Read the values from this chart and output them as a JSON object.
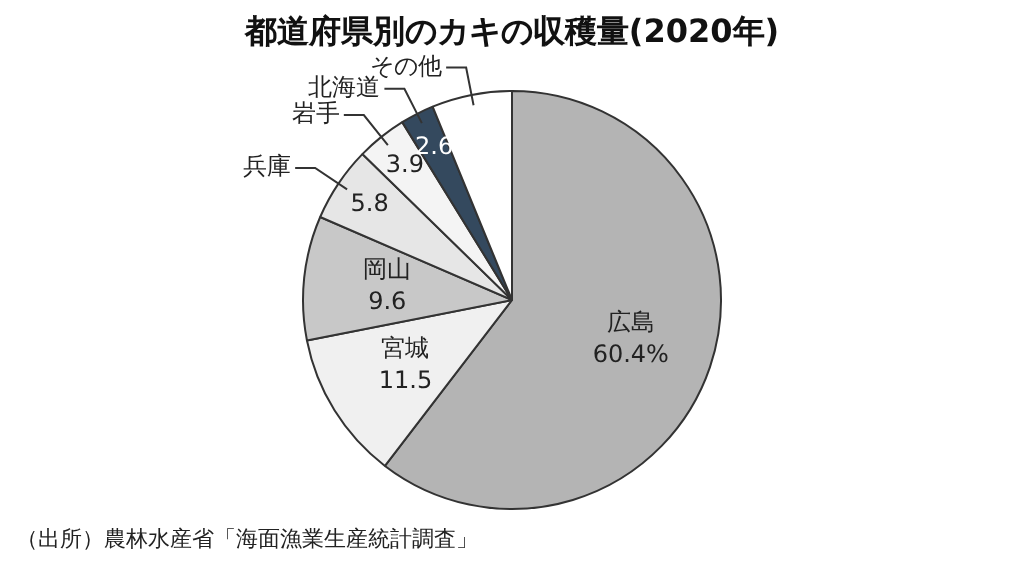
{
  "chart_data": {
    "type": "pie",
    "title": "都道府県別のカキの収穫量(2020年)",
    "categories": [
      "広島",
      "宮城",
      "岡山",
      "兵庫",
      "岩手",
      "北海道",
      "その他"
    ],
    "values": [
      60.4,
      11.5,
      9.6,
      5.8,
      3.9,
      2.6,
      6.2
    ],
    "value_labels": [
      "60.4%",
      "11.5",
      "9.6",
      "5.8",
      "3.9",
      "2.6",
      null
    ],
    "colors": [
      "#b4b4b4",
      "#f0f0f0",
      "#c8c8c8",
      "#e6e6e6",
      "#f4f4f4",
      "#34495e",
      "#ffffff"
    ],
    "legend": false,
    "annotations": [
      "（出所）農林水産省「海面漁業生産統計調査」"
    ]
  }
}
